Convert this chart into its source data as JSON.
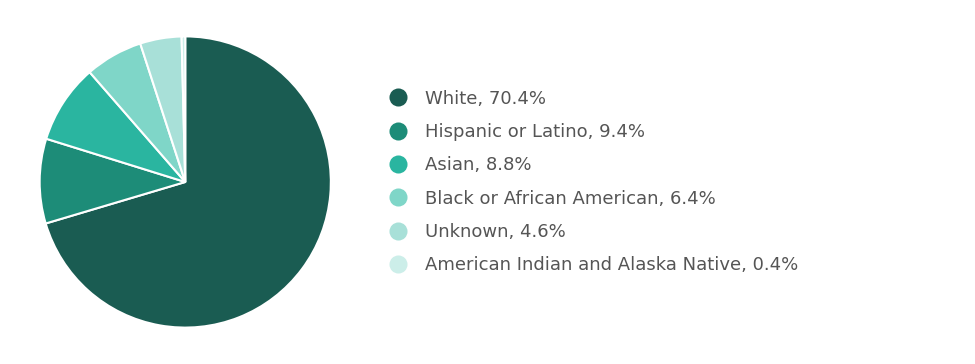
{
  "labels": [
    "White, 70.4%",
    "Hispanic or Latino, 9.4%",
    "Asian, 8.8%",
    "Black or African American, 6.4%",
    "Unknown, 4.6%",
    "American Indian and Alaska Native, 0.4%"
  ],
  "values": [
    70.4,
    9.4,
    8.8,
    6.4,
    4.6,
    0.4
  ],
  "colors": [
    "#1a5c52",
    "#1d8c78",
    "#2ab5a0",
    "#7fd6c8",
    "#a8e0d8",
    "#cceee9"
  ],
  "text_color": "#555555",
  "background_color": "#ffffff",
  "legend_fontsize": 13,
  "wedge_linewidth": 1.5,
  "wedge_linecolor": "#ffffff"
}
